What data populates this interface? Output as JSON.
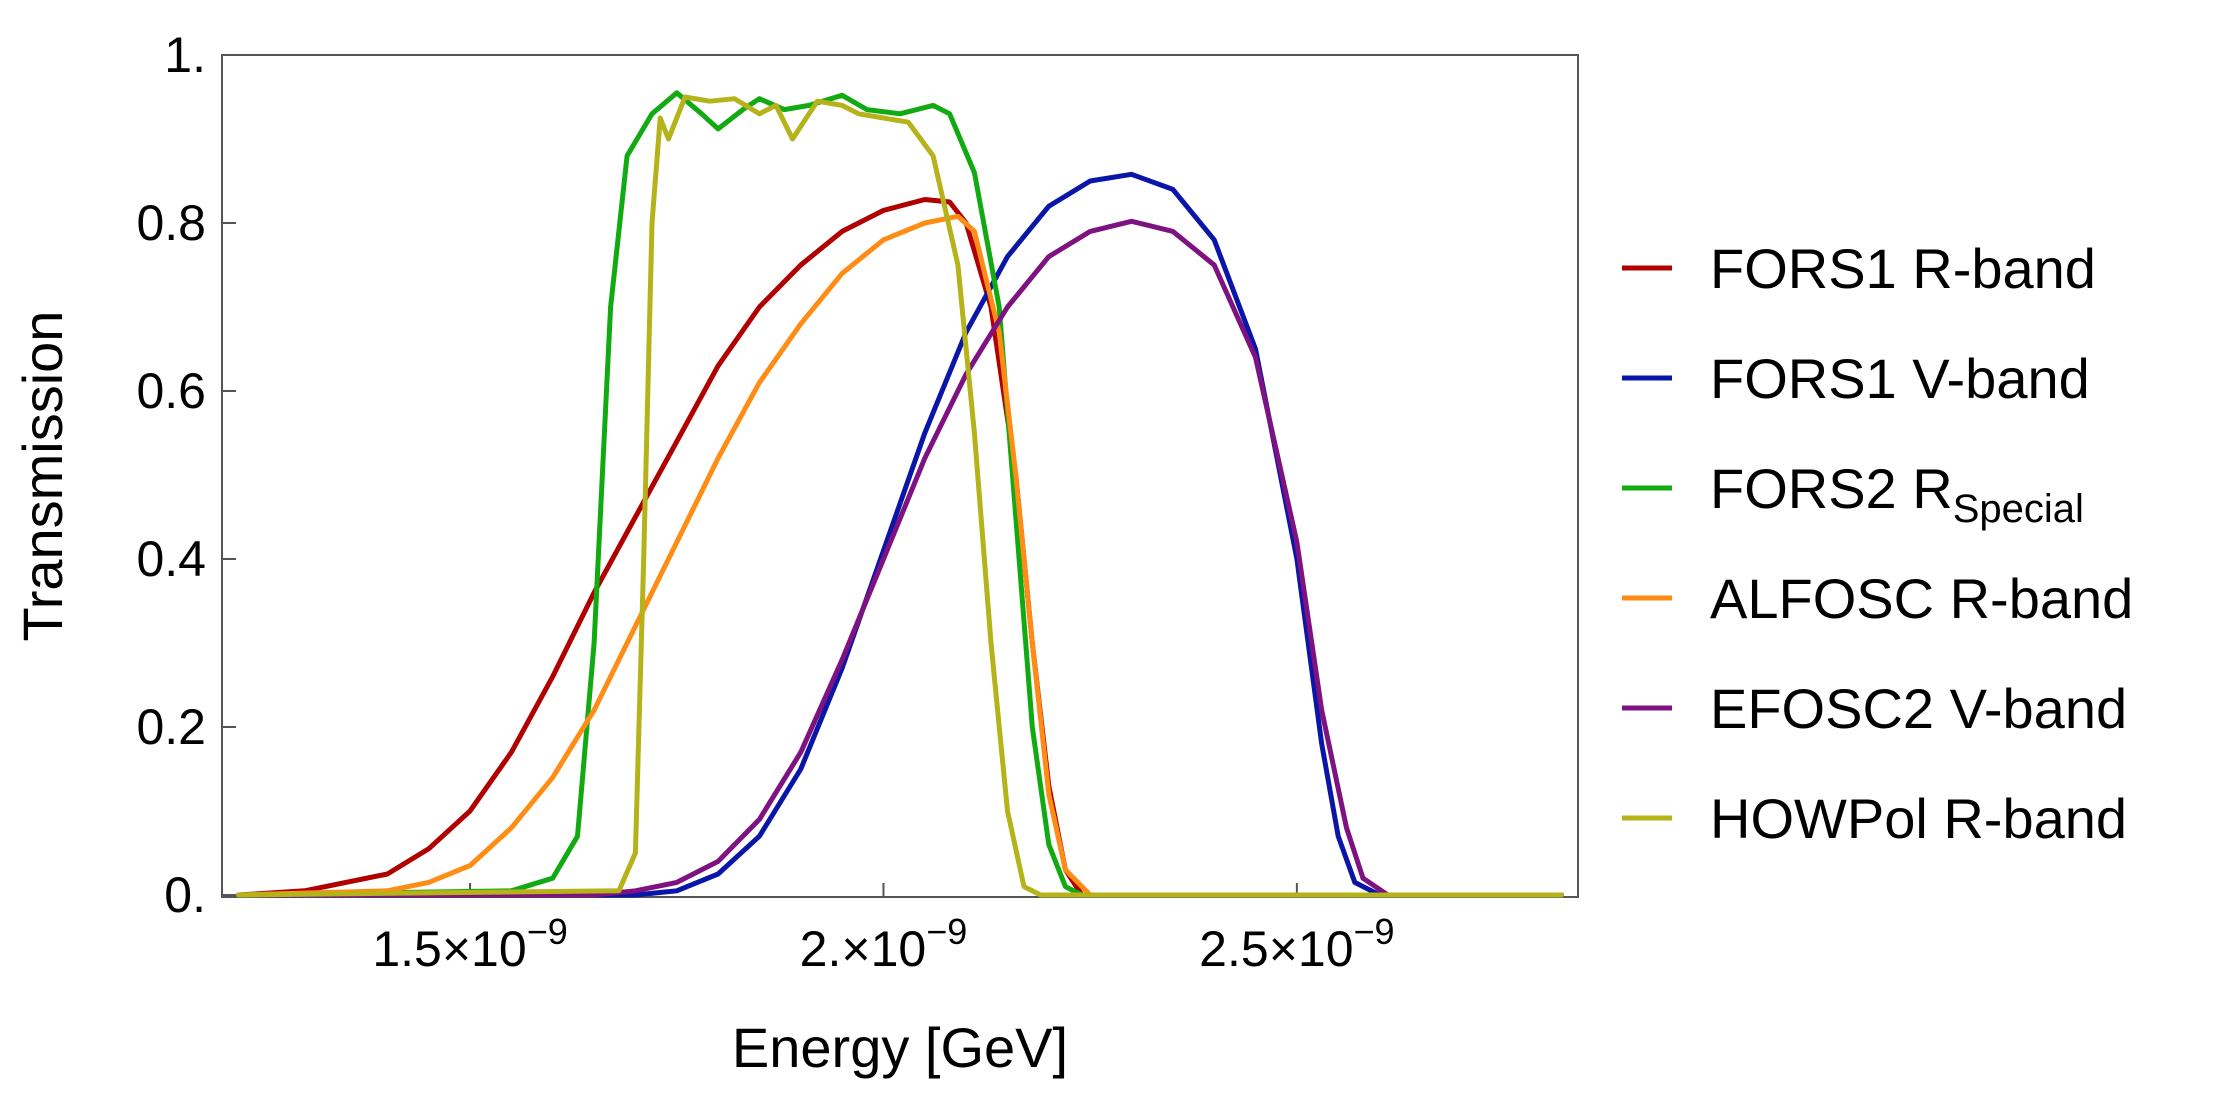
{
  "chart_data": {
    "type": "line",
    "title": "",
    "xlabel": "Energy [GeV]",
    "ylabel": "Transmission",
    "xlim": [
      1.2e-09,
      2.84e-09
    ],
    "ylim": [
      0,
      1.0
    ],
    "grid": false,
    "legend_position": "right",
    "x_ticks": [
      {
        "value": 1.5e-09,
        "mantissa": "1.5",
        "times": "×10",
        "exp": "−9"
      },
      {
        "value": 2e-09,
        "mantissa": "2.",
        "times": "×10",
        "exp": "−9"
      },
      {
        "value": 2.5e-09,
        "mantissa": "2.5",
        "times": "×10",
        "exp": "−9"
      }
    ],
    "y_ticks": [
      {
        "value": 0.0,
        "label": "0."
      },
      {
        "value": 0.2,
        "label": "0.2"
      },
      {
        "value": 0.4,
        "label": "0.4"
      },
      {
        "value": 0.6,
        "label": "0.6"
      },
      {
        "value": 0.8,
        "label": "0.8"
      },
      {
        "value": 1.0,
        "label": "1."
      }
    ],
    "series": [
      {
        "name": "FORS1 R-band",
        "name_sub": "",
        "color": "#b00000",
        "points": [
          [
            1.22e-09,
            0.0
          ],
          [
            1.3e-09,
            0.005
          ],
          [
            1.4e-09,
            0.025
          ],
          [
            1.45e-09,
            0.055
          ],
          [
            1.5e-09,
            0.1
          ],
          [
            1.55e-09,
            0.17
          ],
          [
            1.6e-09,
            0.26
          ],
          [
            1.65e-09,
            0.36
          ],
          [
            1.7e-09,
            0.45
          ],
          [
            1.75e-09,
            0.54
          ],
          [
            1.8e-09,
            0.63
          ],
          [
            1.85e-09,
            0.7
          ],
          [
            1.9e-09,
            0.75
          ],
          [
            1.95e-09,
            0.79
          ],
          [
            2e-09,
            0.815
          ],
          [
            2.05e-09,
            0.828
          ],
          [
            2.08e-09,
            0.825
          ],
          [
            2.1e-09,
            0.8
          ],
          [
            2.13e-09,
            0.7
          ],
          [
            2.16e-09,
            0.5
          ],
          [
            2.18e-09,
            0.3
          ],
          [
            2.2e-09,
            0.13
          ],
          [
            2.22e-09,
            0.03
          ],
          [
            2.24e-09,
            0.0
          ],
          [
            2.82e-09,
            0.0
          ]
        ]
      },
      {
        "name": "FORS1 V-band",
        "name_sub": "",
        "color": "#0a16a8",
        "points": [
          [
            1.22e-09,
            0.0
          ],
          [
            1.7e-09,
            0.0
          ],
          [
            1.75e-09,
            0.005
          ],
          [
            1.8e-09,
            0.025
          ],
          [
            1.85e-09,
            0.07
          ],
          [
            1.9e-09,
            0.15
          ],
          [
            1.95e-09,
            0.27
          ],
          [
            2e-09,
            0.41
          ],
          [
            2.05e-09,
            0.55
          ],
          [
            2.1e-09,
            0.67
          ],
          [
            2.15e-09,
            0.76
          ],
          [
            2.2e-09,
            0.82
          ],
          [
            2.25e-09,
            0.85
          ],
          [
            2.3e-09,
            0.858
          ],
          [
            2.35e-09,
            0.84
          ],
          [
            2.4e-09,
            0.78
          ],
          [
            2.45e-09,
            0.65
          ],
          [
            2.5e-09,
            0.4
          ],
          [
            2.53e-09,
            0.18
          ],
          [
            2.55e-09,
            0.07
          ],
          [
            2.57e-09,
            0.015
          ],
          [
            2.6e-09,
            0.0
          ],
          [
            2.82e-09,
            0.0
          ]
        ]
      },
      {
        "name": "FORS2 R",
        "name_sub": "Special",
        "color": "#12aa12",
        "points": [
          [
            1.22e-09,
            0.0
          ],
          [
            1.55e-09,
            0.005
          ],
          [
            1.6e-09,
            0.02
          ],
          [
            1.63e-09,
            0.07
          ],
          [
            1.65e-09,
            0.3
          ],
          [
            1.67e-09,
            0.7
          ],
          [
            1.69e-09,
            0.88
          ],
          [
            1.72e-09,
            0.93
          ],
          [
            1.75e-09,
            0.955
          ],
          [
            1.78e-09,
            0.93
          ],
          [
            1.8e-09,
            0.912
          ],
          [
            1.83e-09,
            0.935
          ],
          [
            1.85e-09,
            0.948
          ],
          [
            1.88e-09,
            0.935
          ],
          [
            1.91e-09,
            0.94
          ],
          [
            1.95e-09,
            0.952
          ],
          [
            1.98e-09,
            0.935
          ],
          [
            2.02e-09,
            0.93
          ],
          [
            2.06e-09,
            0.94
          ],
          [
            2.08e-09,
            0.93
          ],
          [
            2.11e-09,
            0.86
          ],
          [
            2.14e-09,
            0.7
          ],
          [
            2.16e-09,
            0.45
          ],
          [
            2.18e-09,
            0.2
          ],
          [
            2.2e-09,
            0.06
          ],
          [
            2.22e-09,
            0.01
          ],
          [
            2.24e-09,
            0.0
          ],
          [
            2.82e-09,
            0.0
          ]
        ]
      },
      {
        "name": "ALFOSC R-band",
        "name_sub": "",
        "color": "#ff8c14",
        "points": [
          [
            1.22e-09,
            0.0
          ],
          [
            1.4e-09,
            0.005
          ],
          [
            1.45e-09,
            0.015
          ],
          [
            1.5e-09,
            0.035
          ],
          [
            1.55e-09,
            0.08
          ],
          [
            1.6e-09,
            0.14
          ],
          [
            1.65e-09,
            0.22
          ],
          [
            1.7e-09,
            0.32
          ],
          [
            1.75e-09,
            0.42
          ],
          [
            1.8e-09,
            0.52
          ],
          [
            1.85e-09,
            0.61
          ],
          [
            1.9e-09,
            0.68
          ],
          [
            1.95e-09,
            0.74
          ],
          [
            2e-09,
            0.78
          ],
          [
            2.05e-09,
            0.8
          ],
          [
            2.09e-09,
            0.808
          ],
          [
            2.11e-09,
            0.79
          ],
          [
            2.14e-09,
            0.67
          ],
          [
            2.16e-09,
            0.5
          ],
          [
            2.18e-09,
            0.3
          ],
          [
            2.2e-09,
            0.12
          ],
          [
            2.22e-09,
            0.03
          ],
          [
            2.25e-09,
            0.0
          ],
          [
            2.82e-09,
            0.0
          ]
        ]
      },
      {
        "name": "EFOSC2 V-band",
        "name_sub": "",
        "color": "#7d1280",
        "points": [
          [
            1.22e-09,
            0.0
          ],
          [
            1.65e-09,
            0.0
          ],
          [
            1.7e-09,
            0.005
          ],
          [
            1.75e-09,
            0.015
          ],
          [
            1.8e-09,
            0.04
          ],
          [
            1.85e-09,
            0.09
          ],
          [
            1.9e-09,
            0.17
          ],
          [
            1.95e-09,
            0.28
          ],
          [
            2e-09,
            0.4
          ],
          [
            2.05e-09,
            0.52
          ],
          [
            2.1e-09,
            0.62
          ],
          [
            2.15e-09,
            0.7
          ],
          [
            2.2e-09,
            0.76
          ],
          [
            2.25e-09,
            0.79
          ],
          [
            2.3e-09,
            0.802
          ],
          [
            2.35e-09,
            0.79
          ],
          [
            2.4e-09,
            0.75
          ],
          [
            2.45e-09,
            0.64
          ],
          [
            2.5e-09,
            0.42
          ],
          [
            2.53e-09,
            0.22
          ],
          [
            2.56e-09,
            0.08
          ],
          [
            2.58e-09,
            0.02
          ],
          [
            2.61e-09,
            0.0
          ],
          [
            2.82e-09,
            0.0
          ]
        ]
      },
      {
        "name": "HOWPol R-band",
        "name_sub": "",
        "color": "#b5b21a",
        "points": [
          [
            1.22e-09,
            0.0
          ],
          [
            1.68e-09,
            0.005
          ],
          [
            1.7e-09,
            0.05
          ],
          [
            1.71e-09,
            0.4
          ],
          [
            1.72e-09,
            0.8
          ],
          [
            1.73e-09,
            0.925
          ],
          [
            1.74e-09,
            0.9
          ],
          [
            1.76e-09,
            0.95
          ],
          [
            1.79e-09,
            0.945
          ],
          [
            1.82e-09,
            0.948
          ],
          [
            1.85e-09,
            0.93
          ],
          [
            1.87e-09,
            0.94
          ],
          [
            1.89e-09,
            0.9
          ],
          [
            1.92e-09,
            0.945
          ],
          [
            1.95e-09,
            0.94
          ],
          [
            1.97e-09,
            0.93
          ],
          [
            2e-09,
            0.925
          ],
          [
            2.03e-09,
            0.92
          ],
          [
            2.06e-09,
            0.88
          ],
          [
            2.09e-09,
            0.75
          ],
          [
            2.11e-09,
            0.55
          ],
          [
            2.13e-09,
            0.3
          ],
          [
            2.15e-09,
            0.1
          ],
          [
            2.17e-09,
            0.01
          ],
          [
            2.19e-09,
            0.0
          ],
          [
            2.82e-09,
            0.0
          ]
        ]
      }
    ]
  }
}
